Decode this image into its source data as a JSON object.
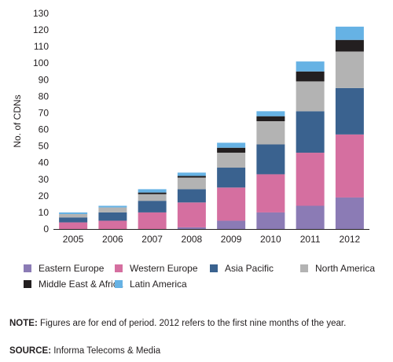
{
  "chart_data": {
    "type": "bar",
    "stacked": true,
    "categories": [
      "2005",
      "2006",
      "2007",
      "2008",
      "2009",
      "2010",
      "2011",
      "2012"
    ],
    "series": [
      {
        "name": "Eastern Europe",
        "color": "#8b7bb5",
        "values": [
          0,
          0,
          0,
          1,
          5,
          10,
          14,
          19
        ]
      },
      {
        "name": "Western Europe",
        "color": "#d56fa0",
        "values": [
          4,
          5,
          10,
          15,
          20,
          23,
          32,
          38
        ]
      },
      {
        "name": "Asia Pacific",
        "color": "#3a628f",
        "values": [
          3,
          5,
          7,
          8,
          12,
          18,
          25,
          28
        ]
      },
      {
        "name": "North America",
        "color": "#b3b3b3",
        "values": [
          2,
          3,
          4,
          7,
          9,
          14,
          18,
          22
        ]
      },
      {
        "name": "Middle East & Africa",
        "color": "#231f20",
        "values": [
          0,
          0,
          1,
          1,
          3,
          3,
          6,
          7
        ]
      },
      {
        "name": "Latin America",
        "color": "#66b2e4",
        "values": [
          1,
          1,
          2,
          2,
          3,
          3,
          6,
          8
        ]
      }
    ],
    "title": "",
    "xlabel": "",
    "ylabel": "No. of CDNs",
    "ylim": [
      0,
      130
    ],
    "yticks": [
      0,
      10,
      20,
      30,
      40,
      50,
      60,
      70,
      80,
      90,
      100,
      110,
      120,
      130
    ],
    "grid": false,
    "legend_placement": "bottom"
  },
  "notes": {
    "note_label": "NOTE:",
    "note_text": " Figures are for end of period. 2012 refers to the first nine months of the year.",
    "source_label": "SOURCE:",
    "source_text": " Informa Telecoms & Media"
  }
}
